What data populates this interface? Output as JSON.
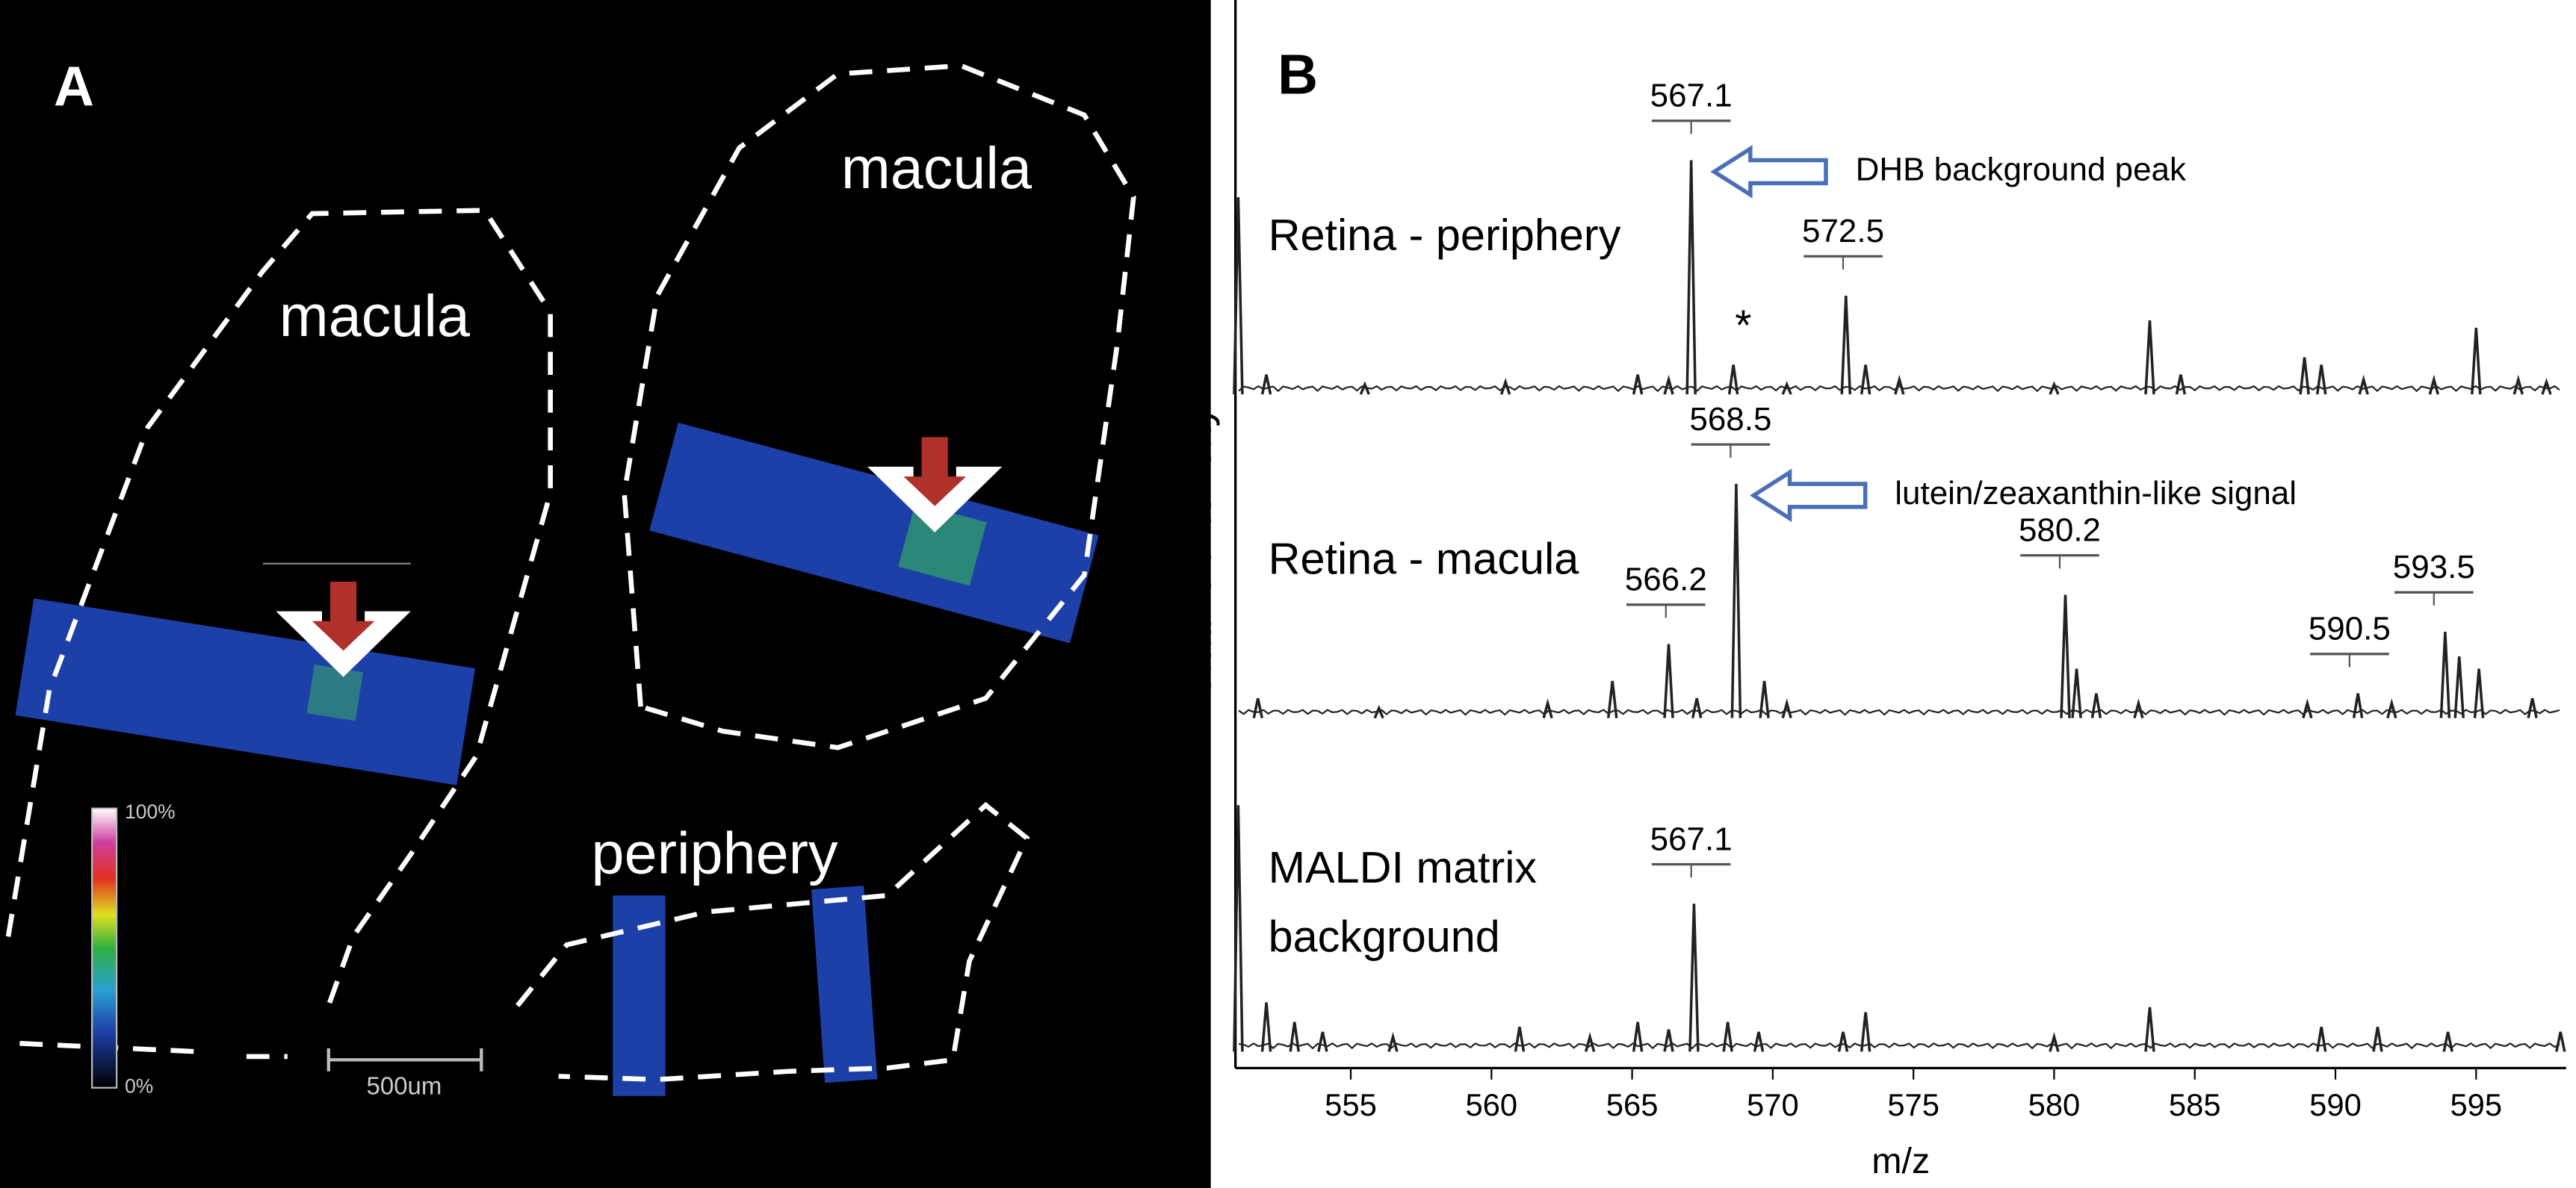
{
  "panel_a": {
    "label": "A",
    "regions": [
      "macula",
      "macula",
      "periphery"
    ],
    "colorbar": {
      "max": "100%",
      "min": "0%"
    },
    "scale_bar": "500um"
  },
  "chart_data": {
    "type": "spectrum",
    "panel_label": "B",
    "x_label": "m/z",
    "y_label": "Relative intensity",
    "xlim": [
      550.9,
      598.2
    ],
    "xticks": [
      555,
      560,
      565,
      570,
      575,
      580,
      585,
      590,
      595
    ],
    "ylim": [
      0,
      100
    ],
    "series": [
      {
        "name": "Retina - periphery",
        "color": "#222222",
        "x": [
          551.0,
          552.0,
          555.5,
          560.5,
          565.2,
          566.3,
          567.1,
          568.6,
          570.5,
          572.6,
          573.3,
          574.5,
          580.0,
          583.4,
          584.5,
          588.9,
          589.5,
          591.0,
          593.5,
          595.0,
          596.5,
          597.5
        ],
        "values": [
          80,
          8,
          4,
          5,
          8,
          6,
          95,
          12,
          4,
          40,
          12,
          6,
          4,
          30,
          8,
          15,
          12,
          6,
          6,
          27,
          6,
          5
        ],
        "peak_labels": [
          567.1,
          572.5
        ],
        "note": "DHB background peak",
        "note_peak": 567.1,
        "asterisk": {
          "label": "*",
          "x": 568.6
        }
      },
      {
        "name": "Retina - macula",
        "color": "#222222",
        "x": [
          551.7,
          556.0,
          562.0,
          564.3,
          566.3,
          567.3,
          568.7,
          569.7,
          570.5,
          580.4,
          580.8,
          581.5,
          583.0,
          589.0,
          590.8,
          592.0,
          593.9,
          594.4,
          595.1,
          597.0
        ],
        "values": [
          8,
          4,
          6,
          15,
          30,
          8,
          95,
          15,
          6,
          50,
          20,
          10,
          6,
          6,
          10,
          6,
          35,
          25,
          20,
          8
        ],
        "peak_labels": [
          568.5,
          566.2,
          580.2,
          590.5,
          593.5
        ],
        "note": "lutein/zeaxanthin-like signal",
        "note_peak": 568.5
      },
      {
        "name": [
          "MALDI matrix",
          "background"
        ],
        "color": "#222222",
        "x": [
          551.0,
          552.0,
          553.0,
          554.0,
          556.5,
          561.0,
          563.5,
          565.2,
          566.3,
          567.2,
          568.4,
          569.5,
          572.5,
          573.3,
          580.0,
          583.4,
          589.5,
          591.5,
          594.0,
          598.0
        ],
        "values": [
          100,
          20,
          12,
          8,
          6,
          10,
          6,
          12,
          9,
          60,
          12,
          8,
          8,
          16,
          6,
          18,
          10,
          10,
          8,
          8
        ],
        "peak_labels": [
          567.1
        ]
      }
    ]
  }
}
